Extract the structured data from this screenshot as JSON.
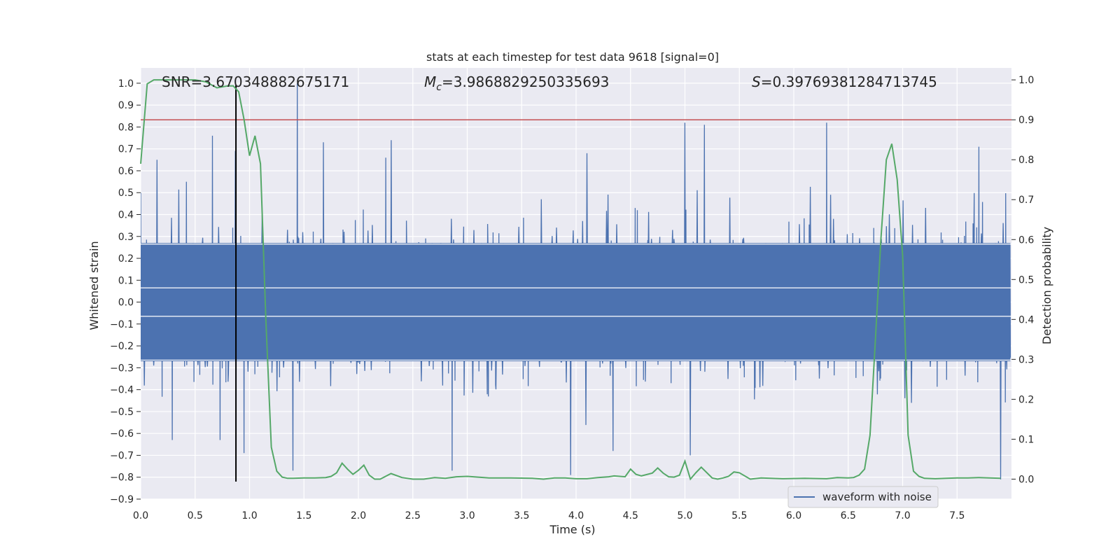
{
  "chart_data": {
    "type": "line",
    "title": "stats at each timestep for test data 9618 [signal=0]",
    "xlabel": "Time (s)",
    "ylabel": "Whitened strain",
    "y2label": "Detection probability",
    "xlim": [
      0.0,
      8.0
    ],
    "ylim": [
      -0.9,
      1.07
    ],
    "y2lim": [
      -0.05,
      1.03
    ],
    "xticks": [
      "0.0",
      "0.5",
      "1.0",
      "1.5",
      "2.0",
      "2.5",
      "3.0",
      "3.5",
      "4.0",
      "4.5",
      "5.0",
      "5.5",
      "6.0",
      "6.5",
      "7.0",
      "7.5"
    ],
    "yticks": [
      "1.0",
      "0.9",
      "0.8",
      "0.7",
      "0.6",
      "0.5",
      "0.4",
      "0.3",
      "0.2",
      "0.1",
      "0.0",
      "−0.1",
      "−0.2",
      "−0.3",
      "−0.4",
      "−0.5",
      "−0.6",
      "−0.7",
      "−0.8",
      "−0.9"
    ],
    "y2ticks": [
      "1.0",
      "0.9",
      "0.8",
      "0.7",
      "0.6",
      "0.5",
      "0.4",
      "0.3",
      "0.2",
      "0.1",
      "0.0"
    ],
    "annotations": {
      "snr": "SNR=3.670348882675171",
      "mc_symbol": "M",
      "mc_sub": "c",
      "mc_value": "=3.9868829250335693",
      "s_symbol": "S",
      "s_value": "=0.39769381284713745"
    },
    "legend": {
      "label": "waveform with noise",
      "position": "lower-right"
    },
    "threshold_line": {
      "axis": "y2",
      "value": 0.9,
      "color": "#c44e52"
    },
    "marker_line": {
      "x": 0.875,
      "ymin": -0.82,
      "ymax": 0.99,
      "color": "#000000"
    },
    "waveform": {
      "name": "waveform with noise",
      "color": "#4c72b0",
      "core_amplitude": 0.27,
      "peaks": [
        {
          "x": 0.0,
          "y": 0.5
        },
        {
          "x": 0.15,
          "y": 0.65
        },
        {
          "x": 0.42,
          "y": 0.55
        },
        {
          "x": 0.66,
          "y": 0.76
        },
        {
          "x": 0.87,
          "y": 0.69
        },
        {
          "x": 1.44,
          "y": 1.0
        },
        {
          "x": 1.68,
          "y": 0.73
        },
        {
          "x": 2.25,
          "y": 0.66
        },
        {
          "x": 2.3,
          "y": 0.74
        },
        {
          "x": 4.1,
          "y": 0.68
        },
        {
          "x": 5.0,
          "y": 0.82
        },
        {
          "x": 5.18,
          "y": 0.81
        },
        {
          "x": 6.3,
          "y": 0.82
        },
        {
          "x": 7.7,
          "y": 0.71
        }
      ],
      "troughs": [
        {
          "x": 0.29,
          "y": -0.63
        },
        {
          "x": 0.73,
          "y": -0.63
        },
        {
          "x": 0.95,
          "y": -0.69
        },
        {
          "x": 1.4,
          "y": -0.77
        },
        {
          "x": 2.86,
          "y": -0.77
        },
        {
          "x": 3.95,
          "y": -0.79
        },
        {
          "x": 4.34,
          "y": -0.68
        },
        {
          "x": 5.05,
          "y": -0.7
        },
        {
          "x": 7.9,
          "y": -0.81
        }
      ]
    },
    "probability": {
      "name": "detection probability",
      "color": "#55a868",
      "x": [
        0.0,
        0.06,
        0.12,
        0.2,
        0.3,
        0.4,
        0.5,
        0.6,
        0.7,
        0.8,
        0.85,
        0.9,
        0.95,
        1.0,
        1.05,
        1.1,
        1.15,
        1.2,
        1.25,
        1.3,
        1.35,
        1.4,
        1.5,
        1.6,
        1.7,
        1.75,
        1.8,
        1.85,
        1.9,
        1.95,
        2.0,
        2.05,
        2.1,
        2.15,
        2.2,
        2.3,
        2.4,
        2.5,
        2.6,
        2.7,
        2.8,
        2.9,
        3.0,
        3.2,
        3.4,
        3.6,
        3.7,
        3.8,
        3.9,
        4.0,
        4.1,
        4.2,
        4.3,
        4.35,
        4.45,
        4.5,
        4.55,
        4.6,
        4.7,
        4.75,
        4.8,
        4.85,
        4.9,
        4.95,
        5.0,
        5.05,
        5.1,
        5.15,
        5.25,
        5.3,
        5.35,
        5.4,
        5.45,
        5.5,
        5.6,
        5.7,
        5.9,
        6.1,
        6.3,
        6.4,
        6.5,
        6.55,
        6.6,
        6.65,
        6.7,
        6.75,
        6.8,
        6.85,
        6.9,
        6.95,
        7.0,
        7.05,
        7.1,
        7.15,
        7.2,
        7.3,
        7.4,
        7.5,
        7.6,
        7.7,
        7.8,
        7.9
      ],
      "y": [
        0.79,
        0.99,
        1.0,
        1.0,
        1.0,
        1.0,
        1.0,
        0.995,
        0.98,
        0.985,
        0.985,
        0.97,
        0.9,
        0.81,
        0.86,
        0.79,
        0.4,
        0.08,
        0.02,
        0.005,
        0.002,
        0.002,
        0.003,
        0.003,
        0.004,
        0.007,
        0.016,
        0.04,
        0.025,
        0.012,
        0.022,
        0.035,
        0.01,
        0.0,
        0.0,
        0.014,
        0.004,
        0.0,
        0.0,
        0.004,
        0.002,
        0.006,
        0.007,
        0.003,
        0.003,
        0.002,
        0.0,
        0.003,
        0.003,
        0.001,
        0.001,
        0.004,
        0.006,
        0.008,
        0.006,
        0.025,
        0.012,
        0.008,
        0.015,
        0.028,
        0.015,
        0.006,
        0.005,
        0.01,
        0.045,
        0.0,
        0.016,
        0.03,
        0.003,
        0.0,
        0.003,
        0.007,
        0.018,
        0.016,
        0.0,
        0.003,
        0.001,
        0.002,
        0.001,
        0.004,
        0.003,
        0.004,
        0.01,
        0.025,
        0.11,
        0.35,
        0.6,
        0.8,
        0.84,
        0.75,
        0.56,
        0.11,
        0.02,
        0.007,
        0.002,
        0.001,
        0.002,
        0.003,
        0.003,
        0.004,
        0.003,
        0.002
      ]
    }
  }
}
